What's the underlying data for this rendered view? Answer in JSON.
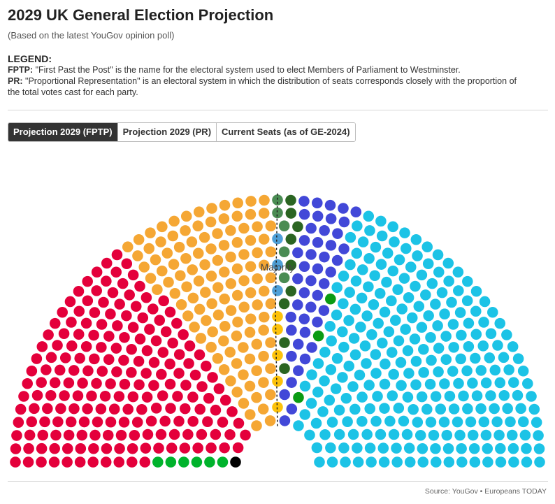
{
  "header": {
    "title": "2029 UK General Election Projection",
    "subtitle": "(Based on the latest YouGov opinion poll)"
  },
  "legend": {
    "heading": "LEGEND:",
    "fptp_term": "FPTP:",
    "fptp_text": " \"First Past the Post\" is the name for the electoral system used to elect Members of Parliament to Westminster.",
    "pr_term": "PR:",
    "pr_text": " \"Proportional Representation\" is an electoral system in which the distribution of seats corresponds closely with the proportion of the total votes cast for each party."
  },
  "tabs": [
    {
      "label": "Projection 2029 (FPTP)",
      "active": true
    },
    {
      "label": "Projection 2029 (PR)",
      "active": false
    },
    {
      "label": "Current Seats (as of GE-2024)",
      "active": false
    }
  ],
  "chart_data": {
    "type": "parliament",
    "total_seats": 650,
    "majority_label": "Majority",
    "majority_line": true,
    "parties": [
      {
        "color": "#000000",
        "seats": 1
      },
      {
        "color": "#00b32c",
        "seats": 6
      },
      {
        "color": "#e4003b",
        "seats": 195
      },
      {
        "color": "#f5a734",
        "seats": 118
      },
      {
        "color": "#fdc20a",
        "seats": 5
      },
      {
        "color": "#4fa0d8",
        "seats": 3
      },
      {
        "color": "#4a8c53",
        "seats": 5
      },
      {
        "color": "#2b6522",
        "seats": 9
      },
      {
        "color": "#4248d8",
        "seats": 45
      },
      {
        "color": "#0a9b13",
        "seats": 3
      },
      {
        "color": "#1cc3e6",
        "seats": 260
      }
    ]
  },
  "footer": {
    "source": "Source: YouGov • Europeans TODAY"
  }
}
